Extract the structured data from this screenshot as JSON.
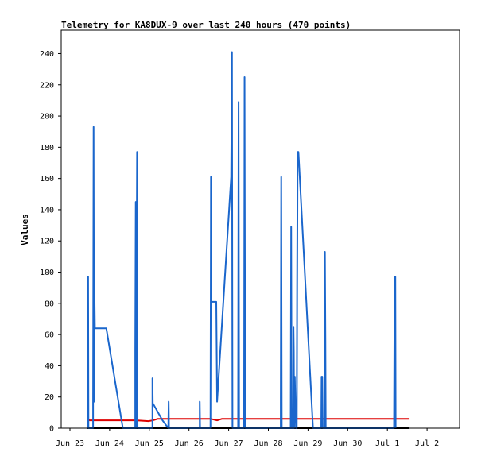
{
  "chart_data": {
    "type": "line",
    "title": "Telemetry for KA8DUX-9 over last 240 hours (470 points)",
    "xlabel": "",
    "ylabel": "Values",
    "ylim": [
      0,
      255
    ],
    "xlim": [
      0,
      240
    ],
    "x_unit": "hours since Jun 23 00:00",
    "yticks": [
      0,
      20,
      40,
      60,
      80,
      100,
      120,
      140,
      160,
      180,
      200,
      220,
      240
    ],
    "xticks": [
      {
        "x": 0,
        "label": "Jun 23"
      },
      {
        "x": 24,
        "label": "Jun 24"
      },
      {
        "x": 48,
        "label": "Jun 25"
      },
      {
        "x": 72,
        "label": "Jun 26"
      },
      {
        "x": 96,
        "label": "Jun 27"
      },
      {
        "x": 120,
        "label": "Jun 28"
      },
      {
        "x": 144,
        "label": "Jun 29"
      },
      {
        "x": 168,
        "label": "Jun 30"
      },
      {
        "x": 192,
        "label": "Jul 1"
      },
      {
        "x": 216,
        "label": "Jul 2"
      }
    ],
    "grid": false,
    "legend": "none",
    "series": [
      {
        "color": "#000000",
        "points": [
          [
            10.6,
            0
          ],
          [
            205.4,
            0
          ]
        ]
      },
      {
        "color": "#dd0000",
        "points": [
          [
            10.6,
            6
          ],
          [
            12,
            5
          ],
          [
            40,
            5
          ],
          [
            47.5,
            4.5
          ],
          [
            50,
            5
          ],
          [
            53.2,
            6
          ],
          [
            85,
            6
          ],
          [
            89,
            5
          ],
          [
            92,
            6
          ],
          [
            205.4,
            6
          ]
        ]
      },
      {
        "color": "#1a66cc",
        "points": [
          [
            11.0,
            0
          ],
          [
            11.0,
            97
          ],
          [
            11.2,
            0
          ],
          [
            14.0,
            0
          ],
          [
            14.0,
            17
          ],
          [
            14.3,
            193
          ],
          [
            14.6,
            17
          ],
          [
            14.9,
            81
          ],
          [
            15.1,
            64
          ],
          [
            22.0,
            64
          ],
          [
            32.0,
            0
          ],
          [
            39.5,
            0
          ],
          [
            39.5,
            49
          ],
          [
            39.8,
            145
          ],
          [
            40.0,
            0
          ],
          [
            40.3,
            89
          ],
          [
            40.6,
            177
          ],
          [
            40.9,
            0
          ],
          [
            49.9,
            0
          ],
          [
            49.9,
            32
          ],
          [
            50.1,
            16
          ],
          [
            56.0,
            5
          ],
          [
            59.5,
            0
          ],
          [
            59.7,
            17
          ],
          [
            59.9,
            0
          ],
          [
            78.5,
            0
          ],
          [
            78.5,
            17
          ],
          [
            78.7,
            0
          ],
          [
            85.0,
            0
          ],
          [
            85.3,
            161
          ],
          [
            85.6,
            81
          ],
          [
            88.5,
            81
          ],
          [
            89.0,
            17
          ],
          [
            97.5,
            161
          ],
          [
            98.0,
            241
          ],
          [
            98.3,
            0
          ],
          [
            101.7,
            0
          ],
          [
            102.0,
            209
          ],
          [
            102.3,
            0
          ],
          [
            105.3,
            0
          ],
          [
            105.6,
            225
          ],
          [
            105.9,
            49
          ],
          [
            106.2,
            0
          ],
          [
            127.5,
            0
          ],
          [
            127.5,
            17
          ],
          [
            127.8,
            161
          ],
          [
            128.1,
            0
          ],
          [
            133.5,
            0
          ],
          [
            133.8,
            129
          ],
          [
            134.1,
            0
          ],
          [
            135.0,
            0
          ],
          [
            135.2,
            65
          ],
          [
            135.4,
            49
          ],
          [
            135.6,
            0
          ],
          [
            136.0,
            33
          ],
          [
            136.3,
            17
          ],
          [
            136.7,
            0
          ],
          [
            137.2,
            0
          ],
          [
            137.4,
            89
          ],
          [
            137.7,
            177
          ],
          [
            138.2,
            177
          ],
          [
            147.0,
            0
          ],
          [
            152.0,
            0
          ],
          [
            152.2,
            33
          ],
          [
            152.6,
            33
          ],
          [
            152.9,
            0
          ],
          [
            154.0,
            0
          ],
          [
            154.2,
            113
          ],
          [
            154.5,
            57
          ],
          [
            154.7,
            0
          ],
          [
            196.0,
            0
          ],
          [
            196.2,
            49
          ],
          [
            196.4,
            97
          ],
          [
            196.8,
            97
          ],
          [
            197.0,
            0
          ]
        ]
      }
    ]
  }
}
